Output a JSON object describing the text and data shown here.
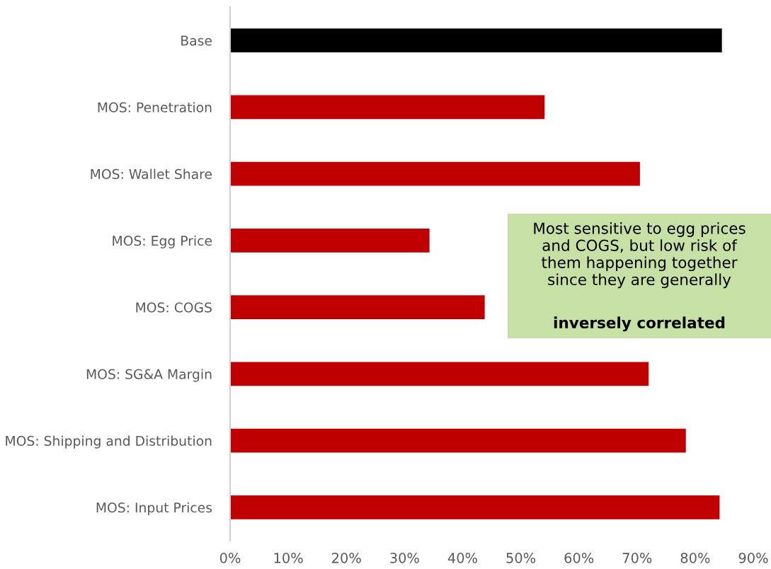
{
  "chart_data": {
    "type": "bar",
    "orientation": "horizontal",
    "categories": [
      "Base",
      "MOS: Penetration",
      "MOS: Wallet Share",
      "MOS: Egg Price",
      "MOS: COGS",
      "MOS: SG&A Margin",
      "MOS: Shipping and Distribution",
      "MOS: Input Prices"
    ],
    "values": [
      84.6,
      54.1,
      70.5,
      34.3,
      43.8,
      72.0,
      78.4,
      84.2
    ],
    "colors": [
      "#000000",
      "#c00000",
      "#c00000",
      "#c00000",
      "#c00000",
      "#c00000",
      "#c00000",
      "#c00000"
    ],
    "xlim": [
      0,
      90
    ],
    "xticks": [
      {
        "value": 0,
        "label": "0%"
      },
      {
        "value": 10,
        "label": "10%"
      },
      {
        "value": 20,
        "label": "20%"
      },
      {
        "value": 30,
        "label": "30%"
      },
      {
        "value": 40,
        "label": "40%"
      },
      {
        "value": 50,
        "label": "50%"
      },
      {
        "value": 60,
        "label": "60%"
      },
      {
        "value": 70,
        "label": "70%"
      },
      {
        "value": 80,
        "label": "80%"
      },
      {
        "value": 90,
        "label": "90%"
      }
    ],
    "annotations": [
      "Most sensitive to egg prices\nand COGS, but low risk of\nthem happening together\nsince they are generally",
      "inversely correlated"
    ],
    "grid": false,
    "legend": false
  }
}
